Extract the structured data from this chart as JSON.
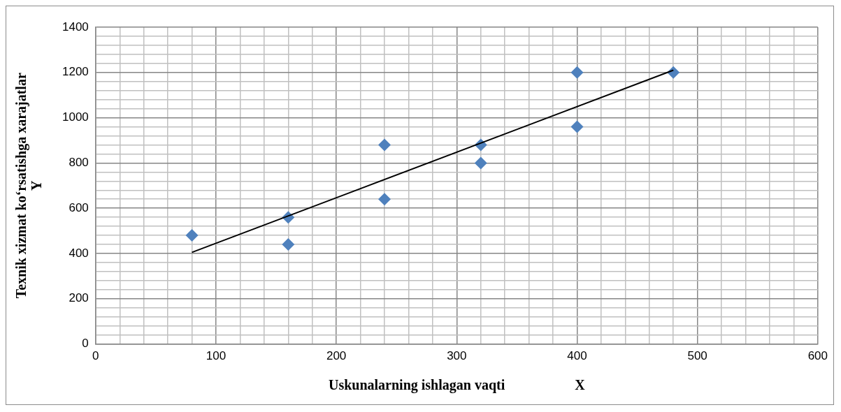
{
  "chart_data": {
    "type": "scatter",
    "xlabel": "Uskunalarning ishlagan vaqti                    X",
    "ylabel": "Texnik xizmat ko‘rsatishga xarajatlar\nY",
    "series": [
      {
        "color": "#4f81bd",
        "marker": "diamond",
        "x": [
          80,
          160,
          160,
          240,
          240,
          320,
          320,
          400,
          400,
          480
        ],
        "values": [
          480,
          560,
          440,
          880,
          640,
          880,
          800,
          1200,
          960,
          1200
        ]
      },
      {
        "type": "line",
        "color": "#000000",
        "marker": "none",
        "line_style": "solid",
        "x": [
          80,
          480
        ],
        "values": [
          405,
          1210
        ]
      }
    ],
    "xlim": [
      0,
      600
    ],
    "xticks": [
      0,
      {
        "value": 20,
        "label": null
      },
      {
        "value": 40,
        "label": null
      },
      {
        "value": 60,
        "label": null
      },
      {
        "value": 80,
        "label": null
      },
      100,
      {
        "value": 120,
        "label": null
      },
      {
        "value": 140,
        "label": null
      },
      {
        "value": 160,
        "label": null
      },
      {
        "value": 180,
        "label": null
      },
      200,
      {
        "value": 220,
        "label": null
      },
      {
        "value": 240,
        "label": null
      },
      {
        "value": 260,
        "label": null
      },
      {
        "value": 280,
        "label": null
      },
      300,
      {
        "value": 320,
        "label": null
      },
      {
        "value": 340,
        "label": null
      },
      {
        "value": 360,
        "label": null
      },
      {
        "value": 380,
        "label": null
      },
      400,
      {
        "value": 420,
        "label": null
      },
      {
        "value": 440,
        "label": null
      },
      {
        "value": 460,
        "label": null
      },
      {
        "value": 480,
        "label": null
      },
      500,
      {
        "value": 520,
        "label": null
      },
      {
        "value": 540,
        "label": null
      },
      {
        "value": 560,
        "label": null
      },
      {
        "value": 580,
        "label": null
      },
      600
    ],
    "ylim": [
      0,
      1400
    ],
    "yticks": [
      0,
      {
        "value": 40,
        "label": null
      },
      {
        "value": 80,
        "label": null
      },
      {
        "value": 120,
        "label": null
      },
      {
        "value": 160,
        "label": null
      },
      200,
      {
        "value": 240,
        "label": null
      },
      {
        "value": 280,
        "label": null
      },
      {
        "value": 320,
        "label": null
      },
      {
        "value": 360,
        "label": null
      },
      400,
      {
        "value": 440,
        "label": null
      },
      {
        "value": 480,
        "label": null
      },
      {
        "value": 520,
        "label": null
      },
      {
        "value": 560,
        "label": null
      },
      600,
      {
        "value": 640,
        "label": null
      },
      {
        "value": 680,
        "label": null
      },
      {
        "value": 720,
        "label": null
      },
      {
        "value": 760,
        "label": null
      },
      800,
      {
        "value": 840,
        "label": null
      },
      {
        "value": 880,
        "label": null
      },
      {
        "value": 920,
        "label": null
      },
      {
        "value": 960,
        "label": null
      },
      1000,
      {
        "value": 1040,
        "label": null
      },
      {
        "value": 1080,
        "label": null
      },
      {
        "value": 1120,
        "label": null
      },
      {
        "value": 1160,
        "label": null
      },
      1200,
      {
        "value": 1240,
        "label": null
      },
      {
        "value": 1280,
        "label": null
      },
      {
        "value": 1320,
        "label": null
      },
      {
        "value": 1360,
        "label": null
      },
      1400
    ],
    "grid": true,
    "legend": false
  }
}
